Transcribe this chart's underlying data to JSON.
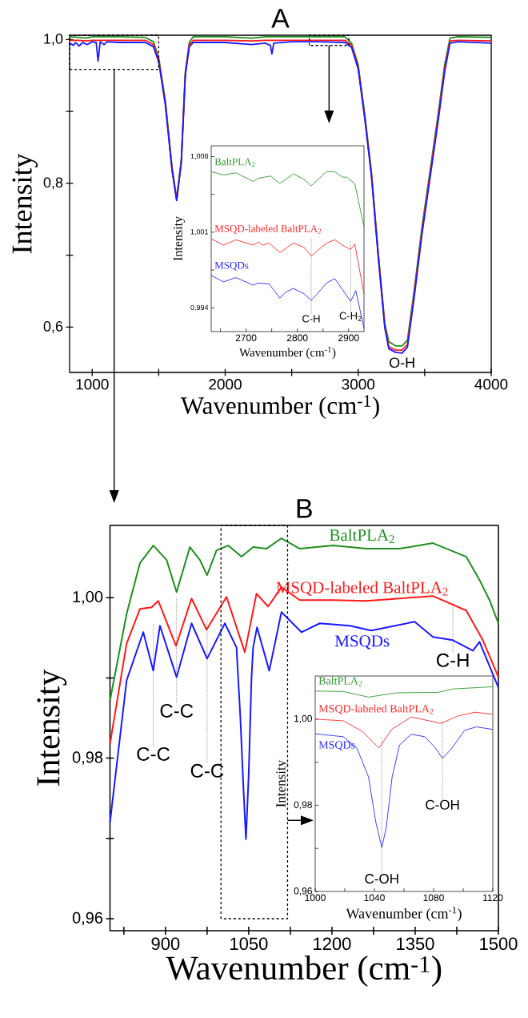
{
  "chart_data": [
    {
      "type": "line",
      "title": "A",
      "xlabel": "Wavenumber (cm$^{-1}$)",
      "ylabel": "Intensity",
      "xlim": [
        830,
        4000
      ],
      "ylim": [
        0.537,
        1.006
      ],
      "xticks": [
        1000,
        {
          "value": 1500,
          "label": null
        },
        2000,
        {
          "value": 2500,
          "label": null
        },
        3000,
        {
          "value": 3500,
          "label": null
        },
        4000
      ],
      "yticks": [
        {
          "value": 0.6,
          "label": "0,6"
        },
        {
          "value": 0.7,
          "label": null
        },
        {
          "value": 0.8,
          "label": "0,8"
        },
        {
          "value": 0.9,
          "label": null
        },
        {
          "value": 1.0,
          "label": "1,0"
        }
      ],
      "series": [
        {
          "color": "#1f8f1f",
          "x": [
            830,
            900,
            950,
            1000,
            1100,
            1200,
            1400,
            1460,
            1500,
            1550,
            1600,
            1635,
            1670,
            1700,
            1730,
            1760,
            2000,
            2200,
            2300,
            2400,
            2700,
            2900,
            2950,
            3000,
            3050,
            3100,
            3150,
            3200,
            3230,
            3280,
            3330,
            3370,
            3420,
            3480,
            3550,
            3600,
            3650,
            3690,
            3750,
            4000
          ],
          "values": [
            1.004,
            1.003,
            1.002,
            1.004,
            1.004,
            1.004,
            1.003,
            0.997,
            0.975,
            0.915,
            0.823,
            0.779,
            0.833,
            0.955,
            0.996,
            1.004,
            1.004,
            1.002,
            1.004,
            1.004,
            1.004,
            1.004,
            0.995,
            0.965,
            0.895,
            0.815,
            0.705,
            0.605,
            0.58,
            0.574,
            0.574,
            0.582,
            0.65,
            0.74,
            0.83,
            0.895,
            0.965,
            1.002,
            1.004,
            1.003
          ]
        },
        {
          "color": "#ff1a1a",
          "x": [
            830,
            900,
            950,
            1000,
            1100,
            1200,
            1400,
            1460,
            1500,
            1550,
            1600,
            1635,
            1670,
            1700,
            1730,
            1760,
            2000,
            2200,
            2300,
            2400,
            2700,
            2900,
            2950,
            3000,
            3050,
            3100,
            3150,
            3200,
            3230,
            3280,
            3330,
            3370,
            3420,
            3480,
            3550,
            3600,
            3650,
            3690,
            3750,
            4000
          ],
          "values": [
            0.999,
            0.999,
            0.998,
            0.999,
            0.999,
            0.999,
            0.999,
            0.993,
            0.972,
            0.912,
            0.821,
            0.777,
            0.831,
            0.952,
            0.993,
            0.999,
            0.999,
            0.998,
            0.999,
            0.999,
            0.999,
            0.999,
            0.992,
            0.962,
            0.892,
            0.812,
            0.702,
            0.602,
            0.573,
            0.568,
            0.568,
            0.576,
            0.645,
            0.735,
            0.825,
            0.89,
            0.96,
            0.998,
            0.999,
            0.998
          ]
        },
        {
          "color": "#1a1aff",
          "x": [
            830,
            860,
            875,
            900,
            930,
            960,
            1000,
            1030,
            1044,
            1060,
            1090,
            1110,
            1200,
            1400,
            1460,
            1500,
            1550,
            1600,
            1635,
            1670,
            1700,
            1730,
            1760,
            2000,
            2200,
            2300,
            2340,
            2351,
            2365,
            2500,
            2700,
            2900,
            2950,
            3000,
            3050,
            3100,
            3150,
            3200,
            3230,
            3280,
            3330,
            3370,
            3420,
            3480,
            3550,
            3600,
            3650,
            3690,
            3750,
            4000
          ],
          "values": [
            0.995,
            0.992,
            0.996,
            0.991,
            0.996,
            0.993,
            0.997,
            0.996,
            0.97,
            0.997,
            0.993,
            0.997,
            0.996,
            0.996,
            0.99,
            0.969,
            0.909,
            0.818,
            0.776,
            0.829,
            0.95,
            0.99,
            0.996,
            0.996,
            0.993,
            0.995,
            0.992,
            0.98,
            0.995,
            0.997,
            0.997,
            0.996,
            0.989,
            0.959,
            0.889,
            0.809,
            0.699,
            0.599,
            0.57,
            0.565,
            0.564,
            0.572,
            0.64,
            0.73,
            0.82,
            0.885,
            0.955,
            0.995,
            0.997,
            0.995
          ]
        }
      ],
      "annotations": [
        {
          "text": "O-H",
          "x": 3330,
          "y": 0.564
        }
      ]
    },
    {
      "type": "line",
      "xlabel": "Wavenumber (cm$^{-1}$)",
      "ylabel": "Intensity",
      "xlim": [
        2632,
        2930
      ],
      "ylim": [
        0.9918,
        1.009
      ],
      "xticks": [
        {
          "value": 2650,
          "label": null
        },
        2700,
        {
          "value": 2750,
          "label": null
        },
        2800,
        {
          "value": 2850,
          "label": null
        },
        2900
      ],
      "yticks": [
        {
          "value": 0.994,
          "label": "0,994"
        },
        {
          "value": 0.9975,
          "label": null
        },
        {
          "value": 1.001,
          "label": "1,001"
        },
        {
          "value": 1.0045,
          "label": null
        },
        {
          "value": 1.008,
          "label": "1,008"
        }
      ],
      "series": [
        {
          "name": "BaltPLA$_{2}$",
          "color": "#2e9a2e",
          "x": [
            2632,
            2656,
            2680,
            2714,
            2724,
            2748,
            2766,
            2792,
            2813,
            2827,
            2857,
            2873,
            2888,
            2896,
            2912,
            2930
          ],
          "values": [
            1.0066,
            1.0063,
            1.0065,
            1.0057,
            1.006,
            1.0062,
            1.0055,
            1.0064,
            1.0059,
            1.0053,
            1.0066,
            1.0066,
            1.0061,
            1.0061,
            1.0055,
            1.0015
          ]
        },
        {
          "name": "MSQD-labeled BaltPLA$_{2}$",
          "color": "#ff2a2a",
          "x": [
            2632,
            2656,
            2680,
            2714,
            2724,
            2732,
            2745,
            2766,
            2792,
            2813,
            2827,
            2857,
            2873,
            2888,
            2904,
            2912,
            2930
          ],
          "values": [
            1.0004,
            0.9998,
            1.0003,
            0.9998,
            1.0001,
            0.9998,
            1.0,
            0.9991,
            1.0,
            0.9996,
            0.9988,
            1.0,
            1.0003,
            0.9998,
            0.9994,
            0.9999,
            0.9953
          ]
        },
        {
          "name": "MSQDs",
          "color": "#2a2aff",
          "x": [
            2632,
            2656,
            2680,
            2714,
            2724,
            2745,
            2766,
            2776,
            2792,
            2813,
            2827,
            2839,
            2857,
            2873,
            2888,
            2904,
            2914,
            2930
          ],
          "values": [
            0.997,
            0.9964,
            0.9968,
            0.9961,
            0.9963,
            0.9962,
            0.9949,
            0.9954,
            0.9958,
            0.9953,
            0.9947,
            0.9953,
            0.9963,
            0.9967,
            0.9957,
            0.9946,
            0.9956,
            0.9921
          ]
        }
      ],
      "annotations": [
        {
          "text": "C-H",
          "x": 2827,
          "y": 0.9947
        },
        {
          "text": "C-H$_{2}$",
          "x": 2904,
          "y": 0.9946
        }
      ]
    },
    {
      "type": "line",
      "title": "B",
      "xlabel": "Wavenumber (cm$^{-1}$)",
      "ylabel": "Intensity",
      "xlim": [
        800,
        1500
      ],
      "ylim": [
        0.9585,
        1.009
      ],
      "xticks": [
        {
          "value": 825,
          "label": null
        },
        900,
        {
          "value": 975,
          "label": null
        },
        1050,
        {
          "value": 1125,
          "label": null
        },
        1200,
        {
          "value": 1275,
          "label": null
        },
        1350,
        {
          "value": 1425,
          "label": null
        },
        1500
      ],
      "yticks": [
        {
          "value": 0.96,
          "label": "0,96"
        },
        {
          "value": 0.97,
          "label": null
        },
        {
          "value": 0.98,
          "label": "0,98"
        },
        {
          "value": 0.99,
          "label": null
        },
        {
          "value": 1.0,
          "label": "1,00"
        }
      ],
      "series": [
        {
          "name": "BaltPLA$_{2}$",
          "color": "#1f8f1f",
          "x": [
            800,
            830,
            854,
            878,
            902,
            920,
            944,
            962,
            975,
            992,
            1013,
            1037,
            1058,
            1082,
            1109,
            1142,
            1202,
            1262,
            1322,
            1382,
            1442,
            1466,
            1484,
            1500
          ],
          "values": [
            0.9872,
            0.998,
            1.0043,
            1.0065,
            1.0047,
            1.0007,
            1.0063,
            1.0047,
            1.0028,
            1.0059,
            1.0065,
            1.0051,
            1.0063,
            1.0061,
            1.0074,
            1.0061,
            1.0065,
            1.0061,
            1.0061,
            1.0068,
            1.0051,
            1.0022,
            0.9997,
            0.9968
          ]
        },
        {
          "name": "MSQD-labeled BaltPLA$_{2}$",
          "color": "#ff1a1a",
          "x": [
            800,
            830,
            854,
            875,
            887,
            919,
            947,
            974,
            1010,
            1043,
            1064,
            1085,
            1109,
            1142,
            1202,
            1262,
            1382,
            1442,
            1472,
            1500
          ],
          "values": [
            0.9818,
            0.9943,
            0.9986,
            0.9988,
            0.9996,
            0.994,
            0.9999,
            0.996,
            1.0001,
            0.9932,
            1.0005,
            0.9989,
            1.0013,
            0.9997,
            0.9997,
            0.9996,
            1.0002,
            0.9984,
            0.9947,
            0.9901
          ]
        },
        {
          "name": "MSQDs",
          "color": "#1a1aff",
          "x": [
            800,
            830,
            860,
            878,
            890,
            920,
            947,
            975,
            1007,
            1028,
            1035,
            1040,
            1045,
            1050,
            1055,
            1058,
            1065,
            1087,
            1109,
            1145,
            1178,
            1232,
            1271,
            1349,
            1382,
            1418,
            1454,
            1466,
            1500
          ],
          "values": [
            0.972,
            0.9897,
            0.9957,
            0.9909,
            0.9965,
            0.9901,
            0.9968,
            0.9924,
            0.9968,
            0.9938,
            0.985,
            0.977,
            0.9699,
            0.978,
            0.99,
            0.9938,
            0.9963,
            0.9909,
            0.9982,
            0.9957,
            0.9968,
            0.9965,
            0.9959,
            0.997,
            0.9951,
            0.9947,
            0.9934,
            0.9945,
            0.9888
          ]
        }
      ],
      "annotations": [
        {
          "text": "C-C",
          "x": 878,
          "y": 0.9909
        },
        {
          "text": "C-C",
          "x": 920,
          "y": 0.9901
        },
        {
          "text": "C-C",
          "x": 975,
          "y": 0.9924
        },
        {
          "text": "C-H",
          "x": 1418,
          "y": 0.9947
        }
      ]
    },
    {
      "type": "line",
      "xlabel": "Wavenumber (cm$^{-1}$)",
      "ylabel": "Intensity",
      "xlim": [
        1000,
        1120
      ],
      "ylim": [
        0.96,
        1.01
      ],
      "xticks": [
        1000,
        {
          "value": 1020,
          "label": null
        },
        1040,
        {
          "value": 1060,
          "label": null
        },
        1080,
        {
          "value": 1100,
          "label": null
        },
        1120
      ],
      "yticks": [
        {
          "value": 0.96,
          "label": "0,96"
        },
        {
          "value": 0.97,
          "label": null
        },
        {
          "value": 0.98,
          "label": "0,98"
        },
        {
          "value": 0.99,
          "label": null
        },
        {
          "value": 1.0,
          "label": "1,00"
        }
      ],
      "series": [
        {
          "name": "BaltPLA$_{2}$",
          "color": "#2e9a2e",
          "x": [
            1000,
            1019,
            1036,
            1055,
            1083,
            1093,
            1120
          ],
          "values": [
            1.0065,
            1.0064,
            1.0051,
            1.0061,
            1.0062,
            1.007,
            1.0075
          ]
        },
        {
          "name": "MSQD-labeled BaltPLA$_{2}$",
          "color": "#ff2a2a",
          "x": [
            1000,
            1019,
            1032,
            1043,
            1052,
            1065,
            1077,
            1085,
            1097,
            1108,
            1120
          ],
          "values": [
            1.0,
            0.9996,
            0.9971,
            0.9933,
            0.9977,
            1.0005,
            0.9996,
            0.999,
            1.0008,
            1.0016,
            1.0011
          ]
        },
        {
          "name": "MSQDs",
          "color": "#2a2aff",
          "x": [
            1000,
            1019,
            1028,
            1036,
            1041,
            1045,
            1048,
            1052,
            1057,
            1065,
            1074,
            1081,
            1086,
            1092,
            1101,
            1109,
            1120
          ],
          "values": [
            0.9966,
            0.9959,
            0.9934,
            0.9866,
            0.976,
            0.9702,
            0.9748,
            0.9866,
            0.994,
            0.9965,
            0.9959,
            0.9934,
            0.9909,
            0.9931,
            0.9974,
            0.9982,
            0.9976
          ]
        }
      ],
      "annotations": [
        {
          "text": "C-OH",
          "x": 1045,
          "y": 0.9702
        },
        {
          "text": "C-OH",
          "x": 1086,
          "y": 0.9909
        }
      ]
    }
  ]
}
